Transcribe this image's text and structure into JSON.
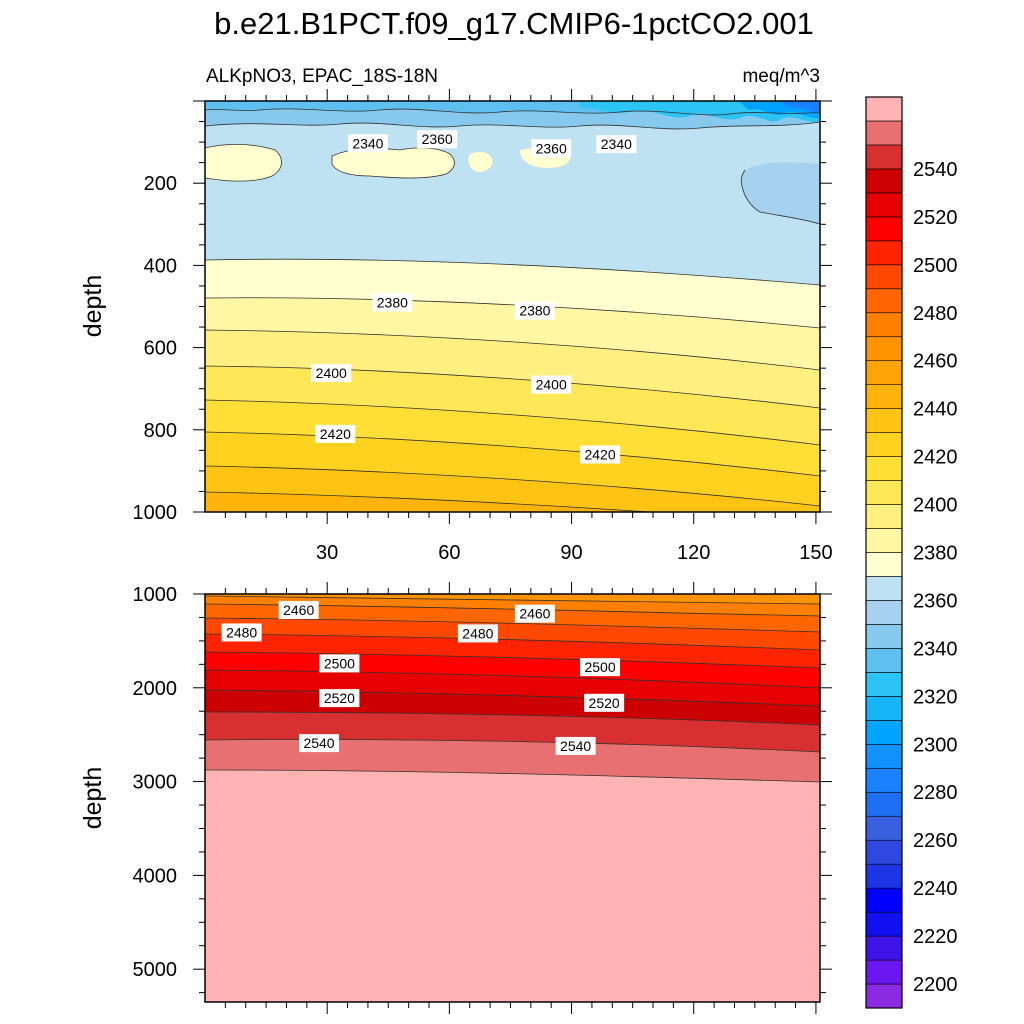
{
  "chart_data": {
    "type": "heatmap",
    "title": "b.e21.B1PCT.f09_g17.CMIP6-1pctCO2.001",
    "variable": "ALKpNO3, EPAC_18S-18N",
    "units": "meq/m^3",
    "colorbar": {
      "levels": [
        2200,
        2210,
        2220,
        2230,
        2240,
        2250,
        2260,
        2270,
        2280,
        2290,
        2300,
        2310,
        2320,
        2330,
        2340,
        2350,
        2360,
        2370,
        2380,
        2390,
        2400,
        2410,
        2420,
        2430,
        2440,
        2450,
        2460,
        2470,
        2480,
        2490,
        2500,
        2510,
        2520,
        2530,
        2540,
        2550
      ],
      "labels": [
        "2200",
        "2220",
        "2240",
        "2260",
        "2280",
        "2300",
        "2320",
        "2340",
        "2360",
        "2380",
        "2400",
        "2420",
        "2440",
        "2460",
        "2480",
        "2500",
        "2520",
        "2540"
      ],
      "colors": [
        "#8a2be2",
        "#6a17f0",
        "#3f14e8",
        "#1010f0",
        "#0000ff",
        "#1e35e6",
        "#2f48e0",
        "#3a60e0",
        "#1f6ff2",
        "#1a82ff",
        "#1192ff",
        "#00a4ff",
        "#16b4f8",
        "#2bc4f5",
        "#5ec0f0",
        "#86c8ee",
        "#a6d2ef",
        "#bee2f2",
        "#ffffd0",
        "#fff7a4",
        "#fff081",
        "#ffe858",
        "#ffdf35",
        "#ffd21f",
        "#ffc313",
        "#ffb30b",
        "#ffa405",
        "#ff9300",
        "#ff7f00",
        "#ff6600",
        "#ff4800",
        "#ff2400",
        "#ff0000",
        "#e60000",
        "#cc0000",
        "#d83030",
        "#e87070",
        "#ffb3b3"
      ]
    },
    "panels": [
      {
        "name": "upper",
        "ylabel": "depth",
        "xlim": [
          0,
          151
        ],
        "ylim": [
          1000,
          0
        ],
        "xticks": [
          30,
          60,
          90,
          120,
          150
        ],
        "yticks": [
          200,
          400,
          600,
          800,
          1000
        ],
        "contour_labels": [
          {
            "text": "2340",
            "x": 40,
            "y": 103
          },
          {
            "text": "2360",
            "x": 57,
            "y": 93
          },
          {
            "text": "2360",
            "x": 85,
            "y": 115
          },
          {
            "text": "2340",
            "x": 101,
            "y": 105
          },
          {
            "text": "2380",
            "x": 46,
            "y": 490
          },
          {
            "text": "2380",
            "x": 81,
            "y": 510
          },
          {
            "text": "2400",
            "x": 31,
            "y": 662
          },
          {
            "text": "2400",
            "x": 85,
            "y": 690
          },
          {
            "text": "2420",
            "x": 32,
            "y": 810
          },
          {
            "text": "2420",
            "x": 97,
            "y": 860
          }
        ]
      },
      {
        "name": "lower",
        "ylabel": "depth",
        "xlim": [
          0,
          151
        ],
        "ylim": [
          5350,
          1000
        ],
        "xticks": [
          30,
          60,
          90,
          120,
          150
        ],
        "yticks": [
          1000,
          2000,
          3000,
          4000,
          5000
        ],
        "contour_labels": [
          {
            "text": "2460",
            "x": 23,
            "y": 1170
          },
          {
            "text": "2460",
            "x": 81,
            "y": 1210
          },
          {
            "text": "2480",
            "x": 9,
            "y": 1410
          },
          {
            "text": "2480",
            "x": 67,
            "y": 1420
          },
          {
            "text": "2500",
            "x": 33,
            "y": 1740
          },
          {
            "text": "2500",
            "x": 97,
            "y": 1780
          },
          {
            "text": "2520",
            "x": 33,
            "y": 2110
          },
          {
            "text": "2520",
            "x": 98,
            "y": 2160
          },
          {
            "text": "2540",
            "x": 28,
            "y": 2590
          },
          {
            "text": "2540",
            "x": 91,
            "y": 2620
          }
        ]
      }
    ]
  }
}
